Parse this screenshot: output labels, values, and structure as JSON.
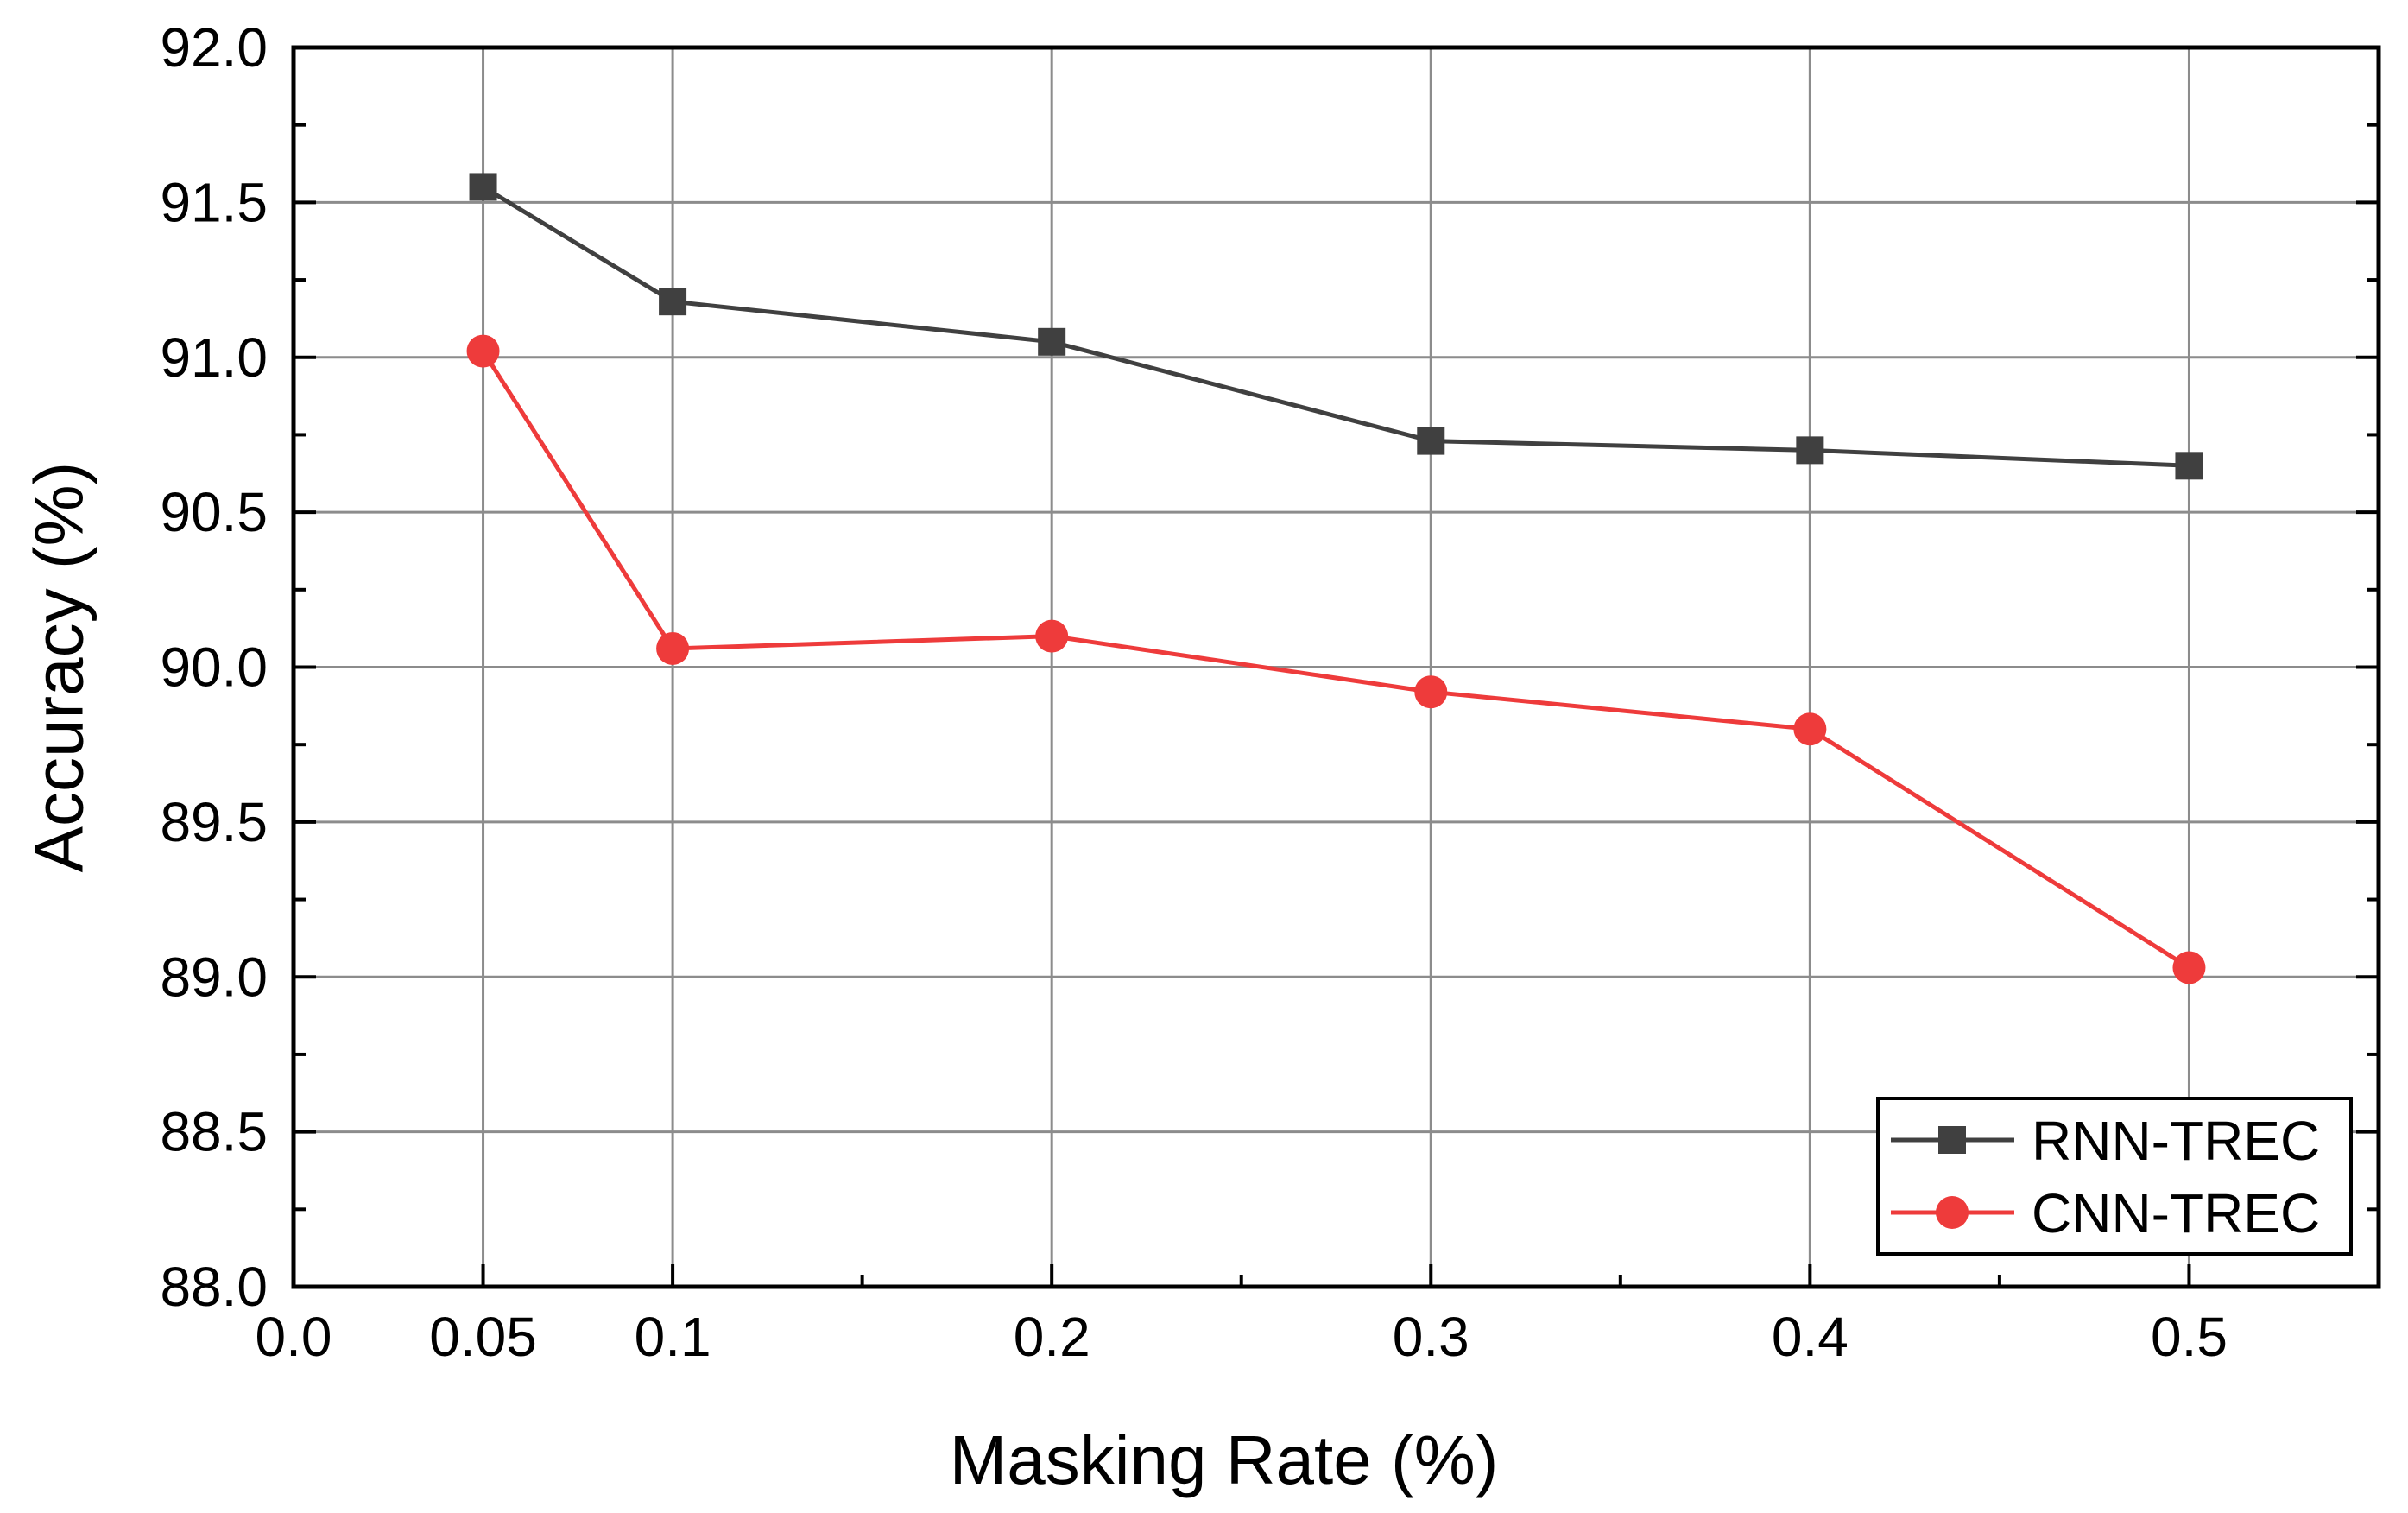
{
  "chart_data": {
    "type": "line",
    "title": "",
    "xlabel": "Masking Rate (%)",
    "ylabel": "Accuracy (%)",
    "xlim": [
      0,
      0.55
    ],
    "ylim": [
      88.0,
      92.0
    ],
    "x_ticks": [
      0.0,
      0.05,
      0.1,
      0.2,
      0.3,
      0.4,
      0.5
    ],
    "x_tick_labels": [
      "0.0",
      "0.05",
      "0.1",
      "0.2",
      "0.3",
      "0.4",
      "0.5"
    ],
    "x_minor_ticks": [
      0.15,
      0.25,
      0.35,
      0.45
    ],
    "y_ticks": [
      88.0,
      88.5,
      89.0,
      89.5,
      90.0,
      90.5,
      91.0,
      91.5,
      92.0
    ],
    "y_tick_labels": [
      "88.0",
      "88.5",
      "89.0",
      "89.5",
      "90.0",
      "90.5",
      "91.0",
      "91.5",
      "92.0"
    ],
    "y_minor_ticks": [
      88.25,
      88.75,
      89.25,
      89.75,
      90.25,
      90.75,
      91.25,
      91.75
    ],
    "grid": true,
    "legend_position": "bottom-right",
    "x": [
      0.05,
      0.1,
      0.2,
      0.3,
      0.4,
      0.5
    ],
    "series": [
      {
        "name": "RNN-TREC",
        "marker": "square",
        "color": "#404040",
        "values": [
          91.55,
          91.18,
          91.05,
          90.73,
          90.7,
          90.65
        ]
      },
      {
        "name": "CNN-TREC",
        "marker": "circle",
        "color": "#ee3b3b",
        "values": [
          91.02,
          90.06,
          90.1,
          89.92,
          89.8,
          89.03
        ]
      }
    ]
  }
}
